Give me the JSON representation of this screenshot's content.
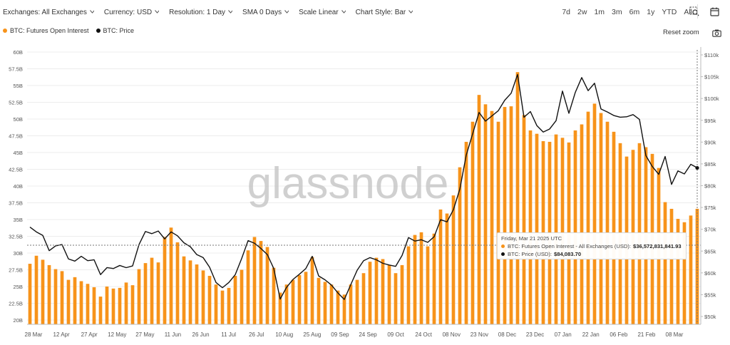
{
  "toolbar": {
    "items": [
      {
        "label": "Exchanges: All Exchanges"
      },
      {
        "label": "Currency: USD"
      },
      {
        "label": "Resolution: 1 Day"
      },
      {
        "label": "SMA 0 Days"
      },
      {
        "label": "Scale Linear"
      },
      {
        "label": "Chart Style: Bar"
      }
    ],
    "ranges": [
      "7d",
      "2w",
      "1m",
      "3m",
      "6m",
      "1y",
      "YTD",
      "All"
    ],
    "zoom_icon": "zoom-search-icon",
    "calendar_icon": "calendar-icon"
  },
  "legend": [
    {
      "label": "BTC: Futures Open Interest",
      "color": "#f7931a"
    },
    {
      "label": "BTC: Price",
      "color": "#111111"
    }
  ],
  "reset_zoom": "Reset zoom",
  "camera_icon": "camera-icon",
  "watermark": "glassnode",
  "tooltip": {
    "date": "Friday, Mar 21 2025 UTC",
    "oi_label": "BTC: Futures Open Interest - All Exchanges (USD):",
    "oi_value": "$36,572,831,841.93",
    "price_label": "BTC: Price (USD):",
    "price_value": "$84,083.70"
  },
  "chart_data": {
    "type": "bar",
    "title": "",
    "xlabel": "",
    "ylabel": "",
    "x_tick_labels": [
      "28 Mar",
      "12 Apr",
      "27 Apr",
      "12 May",
      "27 May",
      "11 Jun",
      "26 Jun",
      "11 Jul",
      "26 Jul",
      "10 Aug",
      "25 Aug",
      "09 Sep",
      "24 Sep",
      "09 Oct",
      "24 Oct",
      "08 Nov",
      "23 Nov",
      "08 Dec",
      "23 Dec",
      "07 Jan",
      "22 Jan",
      "06 Feb",
      "21 Feb",
      "08 Mar"
    ],
    "left_axis": {
      "ticks": [
        "20B",
        "22.5B",
        "25B",
        "27.5B",
        "30B",
        "32.5B",
        "35B",
        "37.5B",
        "40B",
        "42.5B",
        "45B",
        "47.5B",
        "50B",
        "52.5B",
        "55B",
        "57.5B",
        "60B"
      ],
      "range": [
        20,
        60
      ],
      "unit": "B"
    },
    "right_axis": {
      "ticks": [
        "$50k",
        "$55k",
        "$60k",
        "$65k",
        "$70k",
        "$75k",
        "$80k",
        "$85k",
        "$90k",
        "$95k",
        "$100k",
        "$105k",
        "$110k"
      ],
      "range": [
        50,
        110
      ],
      "unit": "k"
    },
    "grid": true,
    "series": [
      {
        "name": "BTC: Futures Open Interest",
        "type": "bar",
        "color": "#f7931a",
        "axis": "left",
        "unit": "B USD",
        "values": [
          28.4,
          29.6,
          29.0,
          28.2,
          27.6,
          27.3,
          26.0,
          26.4,
          25.8,
          25.4,
          24.9,
          23.5,
          25.0,
          24.7,
          24.8,
          25.6,
          25.2,
          27.6,
          28.5,
          29.3,
          28.6,
          32.4,
          33.8,
          31.6,
          29.5,
          28.9,
          28.3,
          27.4,
          26.6,
          25.3,
          24.4,
          24.8,
          26.6,
          27.5,
          30.4,
          32.4,
          31.8,
          30.9,
          27.8,
          24.1,
          25.3,
          26.0,
          26.7,
          27.2,
          29.4,
          26.3,
          25.7,
          25.3,
          24.4,
          23.8,
          25.3,
          26.0,
          27.0,
          28.7,
          29.3,
          29.1,
          28.2,
          27.0,
          28.2,
          31.0,
          32.7,
          33.1,
          31.0,
          32.9,
          36.5,
          35.9,
          38.6,
          42.8,
          46.6,
          49.6,
          53.6,
          52.2,
          51.2,
          49.6,
          51.8,
          51.9,
          57.0,
          50.6,
          48.3,
          47.8,
          46.7,
          46.6,
          47.7,
          47.2,
          46.5,
          48.3,
          49.2,
          51.1,
          52.3,
          50.9,
          49.6,
          48.1,
          46.4,
          44.4,
          45.4,
          46.4,
          45.8,
          44.8,
          42.7,
          37.6,
          36.6,
          35.1,
          34.6,
          35.6,
          36.6
        ]
      },
      {
        "name": "BTC: Price",
        "type": "line",
        "color": "#111111",
        "axis": "right",
        "unit": "k USD",
        "values": [
          70.5,
          69.4,
          68.6,
          65.1,
          66.2,
          66.5,
          63.2,
          62.7,
          63.8,
          62.8,
          63.0,
          59.6,
          61.2,
          61.0,
          61.7,
          61.2,
          61.6,
          66.5,
          69.5,
          69.0,
          69.6,
          67.8,
          69.4,
          68.5,
          66.9,
          66.0,
          64.2,
          63.5,
          61.3,
          57.8,
          56.6,
          57.8,
          59.6,
          63.3,
          67.4,
          66.8,
          65.6,
          64.2,
          61.0,
          54.0,
          56.7,
          58.5,
          59.7,
          61.0,
          63.8,
          59.3,
          58.4,
          57.2,
          55.4,
          53.9,
          57.3,
          60.6,
          62.8,
          63.5,
          63.0,
          62.2,
          61.8,
          61.5,
          64.0,
          68.1,
          67.3,
          67.6,
          67.0,
          68.3,
          72.2,
          71.7,
          74.5,
          79.2,
          87.0,
          91.9,
          96.8,
          94.8,
          96.0,
          97.2,
          99.6,
          101.2,
          105.5,
          95.7,
          97.0,
          93.8,
          92.3,
          93.0,
          94.9,
          101.7,
          96.6,
          101.4,
          104.8,
          101.8,
          103.5,
          97.6,
          96.9,
          96.1,
          95.7,
          95.8,
          96.3,
          95.2,
          86.9,
          84.4,
          82.6,
          86.7,
          80.3,
          83.4,
          82.7,
          84.9,
          84.1
        ]
      }
    ],
    "hover": {
      "date": "Mar 21 2025",
      "open_interest": 36.57,
      "price": 84.08
    }
  }
}
